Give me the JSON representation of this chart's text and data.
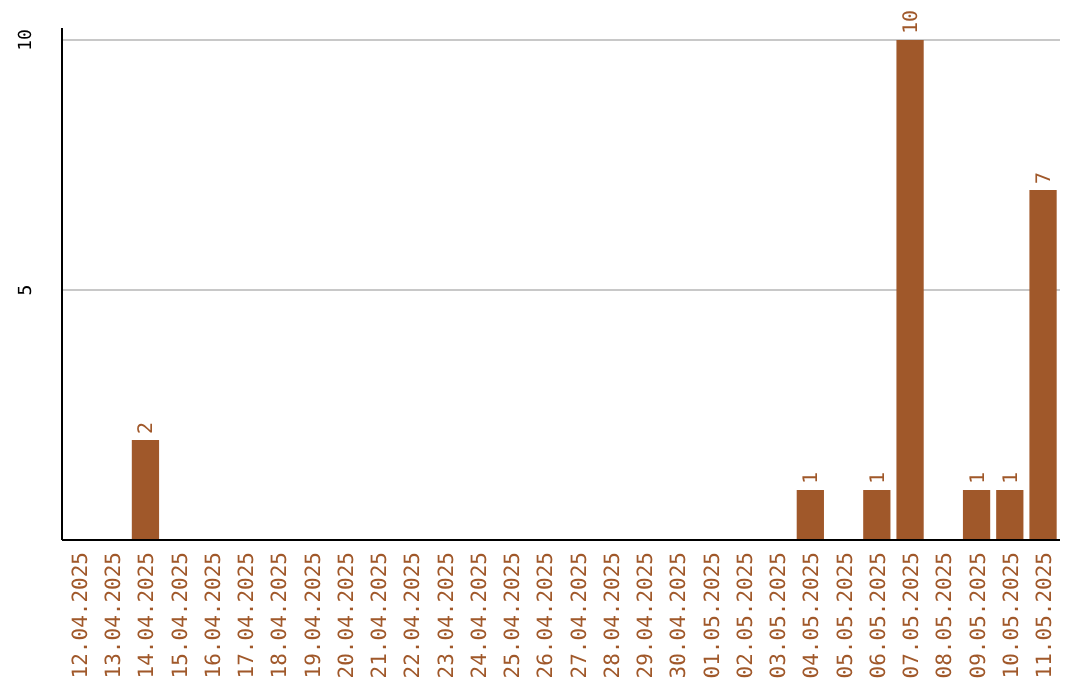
{
  "chart_data": {
    "type": "bar",
    "categories": [
      "12.04.2025",
      "13.04.2025",
      "14.04.2025",
      "15.04.2025",
      "16.04.2025",
      "17.04.2025",
      "18.04.2025",
      "19.04.2025",
      "20.04.2025",
      "21.04.2025",
      "22.04.2025",
      "23.04.2025",
      "24.04.2025",
      "25.04.2025",
      "26.04.2025",
      "27.04.2025",
      "28.04.2025",
      "29.04.2025",
      "30.04.2025",
      "01.05.2025",
      "02.05.2025",
      "03.05.2025",
      "04.05.2025",
      "05.05.2025",
      "06.05.2025",
      "07.05.2025",
      "08.05.2025",
      "09.05.2025",
      "10.05.2025",
      "11.05.2025"
    ],
    "values": [
      0,
      0,
      2,
      0,
      0,
      0,
      0,
      0,
      0,
      0,
      0,
      0,
      0,
      0,
      0,
      0,
      0,
      0,
      0,
      0,
      0,
      0,
      1,
      0,
      1,
      10,
      0,
      1,
      1,
      7
    ],
    "value_labels": [
      null,
      null,
      "2",
      null,
      null,
      null,
      null,
      null,
      null,
      null,
      null,
      null,
      null,
      null,
      null,
      null,
      null,
      null,
      null,
      null,
      null,
      null,
      "1",
      null,
      "1",
      "10",
      null,
      "1",
      "1",
      "7"
    ],
    "color": "#a0582a",
    "ylim": [
      0,
      10
    ],
    "yticks": [
      5,
      10
    ],
    "grid": "y"
  }
}
